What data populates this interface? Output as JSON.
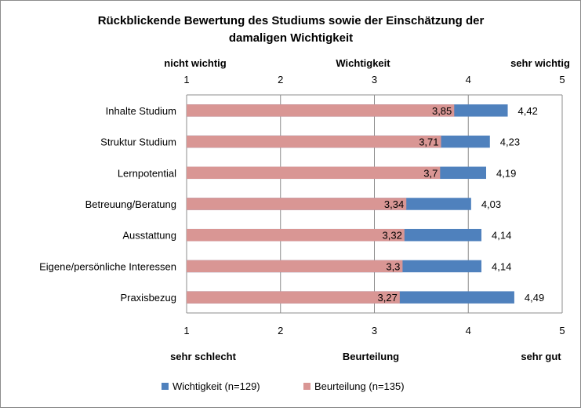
{
  "chart_data": {
    "type": "bar",
    "orientation": "horizontal",
    "title_line1": "Rückblickende Bewertung des Studiums sowie der Einschätzung der",
    "title_line2": "damaligen Wichtigkeit",
    "top_axis": {
      "left_label": "nicht wichtig",
      "center_label": "Wichtigkeit",
      "right_label": "sehr wichtig"
    },
    "bottom_axis": {
      "left_label": "sehr schlecht",
      "center_label": "Beurteilung",
      "right_label": "sehr gut"
    },
    "xlim": [
      1,
      5
    ],
    "ticks": [
      "1",
      "2",
      "3",
      "4",
      "5"
    ],
    "grid": true,
    "legend_position": "bottom",
    "categories": [
      "Inhalte Studium",
      "Struktur Studium",
      "Lernpotential",
      "Betreuung/Beratung",
      "Ausstattung",
      "Eigene/persönliche Interessen",
      "Praxisbezug"
    ],
    "series": [
      {
        "name": "Wichtigkeit (n=129)",
        "color": "#4f81bd",
        "values": [
          4.42,
          4.23,
          4.19,
          4.03,
          4.14,
          4.14,
          4.49
        ],
        "labels": [
          "4,42",
          "4,23",
          "4,19",
          "4,03",
          "4,14",
          "4,14",
          "4,49"
        ]
      },
      {
        "name": "Beurteilung (n=135)",
        "color": "#d99694",
        "values": [
          3.85,
          3.71,
          3.7,
          3.34,
          3.32,
          3.3,
          3.27
        ],
        "labels": [
          "3,85",
          "3,71",
          "3,7",
          "3,34",
          "3,32",
          "3,3",
          "3,27"
        ]
      }
    ]
  }
}
